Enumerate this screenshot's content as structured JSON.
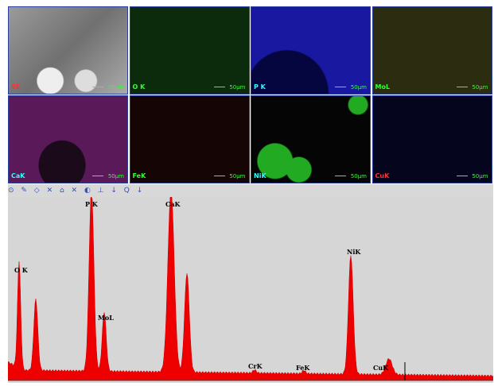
{
  "maps": [
    {
      "label": "SE",
      "scale": "50µm"
    },
    {
      "label": "O K",
      "scale": "50µm"
    },
    {
      "label": "P K",
      "scale": "50µm"
    },
    {
      "label": "MoL",
      "scale": "50µm"
    },
    {
      "label": "CaK",
      "scale": "50µm"
    },
    {
      "label": "FeK",
      "scale": "50µm"
    },
    {
      "label": "NiK",
      "scale": "50µm"
    },
    {
      "label": "CuK",
      "scale": "50µm"
    }
  ],
  "spectrum": {
    "peak_labels": [
      "O K",
      "P K",
      "MoL",
      "CaK",
      "CrK",
      "FeK",
      "NiK",
      "CuK"
    ]
  }
}
